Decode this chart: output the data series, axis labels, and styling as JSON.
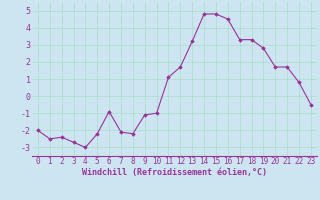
{
  "x": [
    0,
    1,
    2,
    3,
    4,
    5,
    6,
    7,
    8,
    9,
    10,
    11,
    12,
    13,
    14,
    15,
    16,
    17,
    18,
    19,
    20,
    21,
    22,
    23
  ],
  "y": [
    -2.0,
    -2.5,
    -2.4,
    -2.7,
    -3.0,
    -2.2,
    -0.9,
    -2.1,
    -2.2,
    -1.1,
    -1.0,
    1.1,
    1.7,
    3.2,
    4.8,
    4.8,
    4.5,
    3.3,
    3.3,
    2.8,
    1.7,
    1.7,
    0.8,
    -0.5
  ],
  "line_color": "#993399",
  "marker": "D",
  "marker_size": 1.8,
  "linewidth": 0.8,
  "xlabel": "Windchill (Refroidissement éolien,°C)",
  "xlabel_color": "#993399",
  "xlabel_fontsize": 6.0,
  "xtick_fontsize": 5.5,
  "ytick_fontsize": 6.0,
  "bg_color": "#cce5f0",
  "grid_color": "#aaddcc",
  "ylim": [
    -3.5,
    5.5
  ],
  "xlim": [
    -0.5,
    23.5
  ],
  "yticks": [
    -3,
    -2,
    -1,
    0,
    1,
    2,
    3,
    4,
    5
  ],
  "xticks": [
    0,
    1,
    2,
    3,
    4,
    5,
    6,
    7,
    8,
    9,
    10,
    11,
    12,
    13,
    14,
    15,
    16,
    17,
    18,
    19,
    20,
    21,
    22,
    23
  ]
}
